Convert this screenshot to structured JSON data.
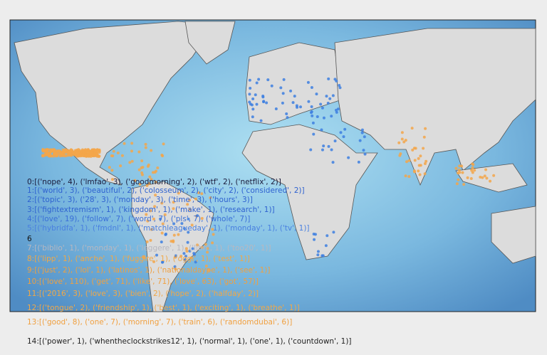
{
  "lines": [
    {
      "text": "0:[('nope', 4), ('lmfao', 3), ('goodmorning', 2), ('wtf', 2), ('netflix', 2)]",
      "color": "#1a1a3a"
    },
    {
      "text": "1:[('world', 3), ('beautiful', 2), ('colosseum', 2), ('city', 2), ('considered', 2)]",
      "color": "#2f62d0"
    },
    {
      "text": "2:[('topic', 3), ('28', 3), ('monday', 3), ('time', 3), ('hours', 3)]",
      "color": "#2f62d0"
    },
    {
      "text": "3:[('fightextremism', 1), ('kingdom', 1), ('make', 1), ('research', 1)]",
      "color": "#2f62d0"
    },
    {
      "text": "4:[('love', 19), ('follow', 7), ('word', 7), ('pls', 7), ('whole', 7)]",
      "color": "#3a6fd8"
    },
    {
      "text": "5:[('hybridfa', 1), ('fmdnl', 1), ('matchleagueday', 1), ('monday', 1), ('tv', 1)]",
      "color": "#4a80e0"
    },
    {
      "text": "6",
      "color": "#111111"
    },
    {
      "text": "7:[('biblio', 1), ('monday', 1), ('leggere', 1), ('libri', 1), ('too20', 1)]",
      "color": "#b8b8c0"
    },
    {
      "text": "8:[('lipp', 1), ('anche', 1), ('fuggire', 1), ('oggi', 1), ('test', 1)]",
      "color": "#f0a848"
    },
    {
      "text": "9:[('just', 2), ('lol', 1), ('latinos', 1), ('nationaldaype', 1), ('see', 1)]",
      "color": "#f0a040"
    },
    {
      "text": "10:[('love', 110), ('get', 71), ('like', 71), ('love', 63), ('got', 57)]",
      "color": "#f0a040"
    },
    {
      "text": "11:[('2016', 3), ('love', 3), ('bien', 2), ('hope', 2), ('halfday', 2)]",
      "color": "#f0a848"
    },
    {
      "text": "12:[('tongue', 2), ('friendship', 1), ('best', 1), ('exciting', 1), ('breathe', 1)]",
      "color": "#f0a848"
    },
    {
      "text": "13:[('good', 8), ('one', 7), ('morning', 7), ('train', 6), ('randomdubai', 6)]",
      "color": "#f0a040"
    },
    {
      "text": "14:[('power', 1), ('whentheclockstrikes12', 1), ('normal', 1), ('one', 1), ('countdown', 1)]",
      "color": "#222222"
    }
  ]
}
